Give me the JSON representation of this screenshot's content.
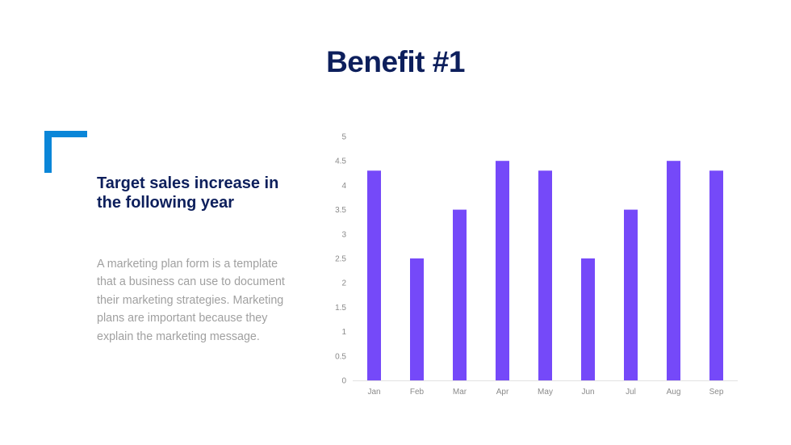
{
  "slide": {
    "title": "Benefit #1",
    "subtitle": "Target sales increase in the following year",
    "body": "A marketing plan form is a template that a business can use to document their marketing strategies. Marketing plans are important because they explain the marketing message.",
    "accent_color": "#0a86d8",
    "title_color": "#0d1f5c"
  },
  "chart_data": {
    "type": "bar",
    "categories": [
      "Jan",
      "Feb",
      "Mar",
      "Apr",
      "May",
      "Jun",
      "Jul",
      "Aug",
      "Sep"
    ],
    "values": [
      4.3,
      2.5,
      3.5,
      4.5,
      4.3,
      2.5,
      3.5,
      4.5,
      4.3
    ],
    "ylim": [
      0,
      5
    ],
    "yticks": [
      "0",
      "0.5",
      "1",
      "1.5",
      "2",
      "2.5",
      "3",
      "3.5",
      "4",
      "4.5",
      "5"
    ],
    "grid": false,
    "legend": "none",
    "bar_color": "#7549f9",
    "title": "",
    "xlabel": "",
    "ylabel": ""
  }
}
